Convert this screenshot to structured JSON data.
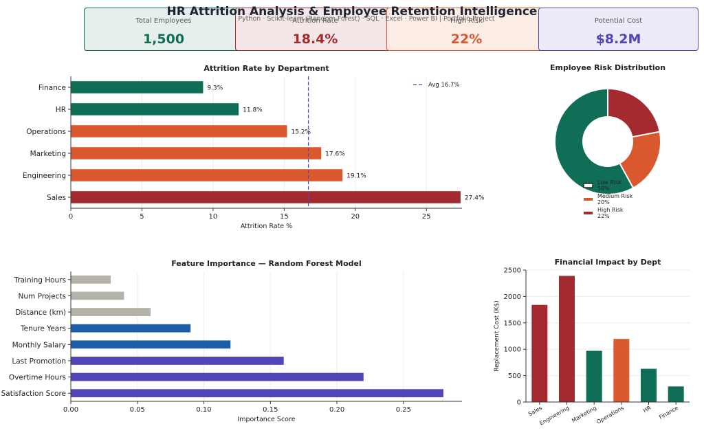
{
  "header": {
    "title": "HR Attrition Analysis & Employee Retention Intelligence",
    "subtitle": "Python · Scikit-learn (Random Forest) · SQL · Excel · Power BI  |  Portfolio Project"
  },
  "kpis": [
    {
      "label": "Total Employees",
      "value": "1,500",
      "color": "#0f6e55",
      "bg": "#e6efec",
      "border": "#0f6e55"
    },
    {
      "label": "Attrition Rate",
      "value": "18.4%",
      "color": "#a32a2e",
      "bg": "#f4e7e7",
      "border": "#a32a2e"
    },
    {
      "label": "High Risk",
      "value": "22%",
      "color": "#d9582e",
      "bg": "#fbece6",
      "border": "#d9582e"
    },
    {
      "label": "Potential Cost",
      "value": "$8.2M",
      "color": "#5046b8",
      "bg": "#edebf8",
      "border": "#5046b8"
    }
  ],
  "chart_data": [
    {
      "type": "bar",
      "orientation": "horizontal",
      "title": "Attrition Rate by Department",
      "categories": [
        "Sales",
        "Engineering",
        "Marketing",
        "Operations",
        "HR",
        "Finance"
      ],
      "values": [
        27.4,
        19.1,
        17.6,
        15.2,
        11.8,
        9.3
      ],
      "value_labels": [
        "27.4%",
        "19.1%",
        "17.6%",
        "15.2%",
        "11.8%",
        "9.3%"
      ],
      "colors": [
        "#a32a2e",
        "#d9582e",
        "#d9582e",
        "#d9582e",
        "#0f6e55",
        "#0f6e55"
      ],
      "xlabel": "Attrition Rate %",
      "xlim": [
        0,
        27.5
      ],
      "xticks": [
        0,
        5,
        10,
        15,
        20,
        25
      ],
      "reference_line": {
        "value": 16.7,
        "label": "Avg 16.7%",
        "color": "#5046b8"
      },
      "legend": "top-right",
      "grid": "x"
    },
    {
      "type": "pie",
      "variant": "donut",
      "title": "Employee Risk Distribution",
      "labels": [
        "Low Risk",
        "Medium Risk",
        "High Risk"
      ],
      "values": [
        58,
        20,
        22
      ],
      "value_labels": [
        "58%",
        "20%",
        "22%"
      ],
      "colors": [
        "#0f6e55",
        "#d9582e",
        "#a32a2e"
      ],
      "legend": "lower-right"
    },
    {
      "type": "bar",
      "orientation": "horizontal",
      "title": "Feature Importance — Random Forest Model",
      "categories": [
        "Satisfaction Score",
        "Overtime Hours",
        "Last Promotion",
        "Monthly Salary",
        "Tenure Years",
        "Distance (km)",
        "Num Projects",
        "Training Hours"
      ],
      "values": [
        0.28,
        0.22,
        0.16,
        0.12,
        0.09,
        0.06,
        0.04,
        0.03
      ],
      "colors": [
        "#5046b8",
        "#5046b8",
        "#5046b8",
        "#1d5fa6",
        "#1d5fa6",
        "#b5b2a9",
        "#b5b2a9",
        "#b5b2a9"
      ],
      "xlabel": "Importance Score",
      "xlim": [
        0,
        0.294
      ],
      "xticks": [
        0.0,
        0.05,
        0.1,
        0.15,
        0.2,
        0.25
      ],
      "xtick_labels": [
        "0.00",
        "0.05",
        "0.10",
        "0.15",
        "0.20",
        "0.25"
      ],
      "grid": "x"
    },
    {
      "type": "bar",
      "title": "Financial Impact by Dept",
      "categories": [
        "Sales",
        "Engineering",
        "Marketing",
        "Operations",
        "HR",
        "Finance"
      ],
      "values": [
        1840,
        2390,
        970,
        1195,
        630,
        295
      ],
      "colors": [
        "#a32a2e",
        "#a32a2e",
        "#0f6e55",
        "#d9582e",
        "#0f6e55",
        "#0f6e55"
      ],
      "ylabel": "Replacement Cost (K$)",
      "ylim": [
        0,
        2500
      ],
      "yticks": [
        0,
        500,
        1000,
        1500,
        2000,
        2500
      ],
      "grid": "y"
    }
  ]
}
